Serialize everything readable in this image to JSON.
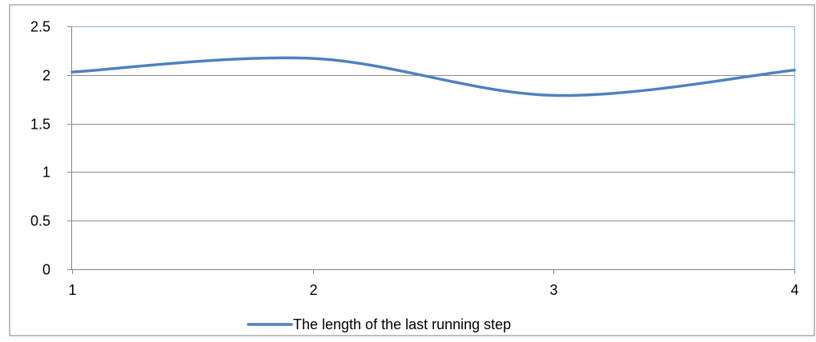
{
  "chart_data": {
    "type": "line",
    "title": "",
    "xlabel": "",
    "ylabel": "",
    "x": [
      1,
      2,
      3,
      4
    ],
    "x_ticks": [
      "1",
      "2",
      "3",
      "4"
    ],
    "xlim": [
      1,
      4
    ],
    "ylim": [
      0,
      2.5
    ],
    "y_ticks": [
      "0",
      "0.5",
      "1",
      "1.5",
      "2",
      "2.5"
    ],
    "y_tick_values": [
      0,
      0.5,
      1,
      1.5,
      2,
      2.5
    ],
    "grid": true,
    "legend_position": "bottom",
    "smooth": true,
    "series": [
      {
        "name": "The length of the last running step",
        "color": "#4f81bd",
        "values": [
          2.03,
          2.17,
          1.79,
          2.05
        ]
      }
    ]
  }
}
